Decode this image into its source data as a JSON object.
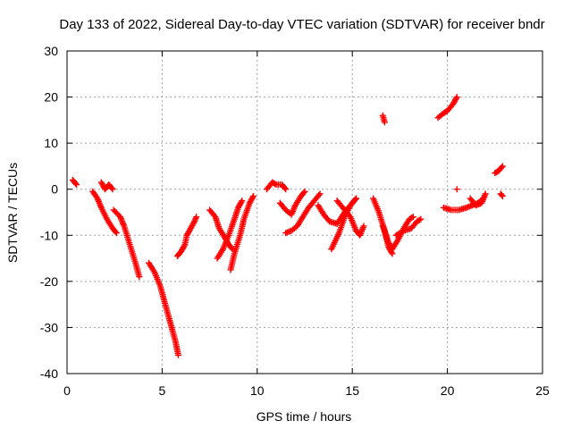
{
  "chart_data": {
    "type": "scatter",
    "title": "Day 133 of 2022, Sidereal Day-to-day VTEC variation (SDTVAR) for receiver bndr",
    "xlabel": "GPS time / hours",
    "ylabel": "SDTVAR / TECUs",
    "xlim": [
      0,
      25
    ],
    "ylim": [
      -40,
      30
    ],
    "x_ticks": [
      "0",
      "5",
      "10",
      "15",
      "20",
      "25"
    ],
    "y_ticks": [
      "30",
      "20",
      "10",
      "0",
      "-10",
      "-20",
      "-30",
      "-40"
    ],
    "grid": true,
    "marker": "plus",
    "color": "#ff0000",
    "tracks": [
      [
        [
          0.3,
          2
        ],
        [
          0.5,
          1
        ]
      ],
      [
        [
          1.8,
          1.5
        ],
        [
          2.0,
          0
        ],
        [
          2.2,
          1
        ],
        [
          2.4,
          0
        ]
      ],
      [
        [
          1.35,
          -0.5
        ],
        [
          1.6,
          -2
        ],
        [
          1.8,
          -4
        ],
        [
          2.1,
          -6.5
        ],
        [
          2.4,
          -8.5
        ],
        [
          2.6,
          -9.5
        ]
      ],
      [
        [
          2.45,
          -4.5
        ],
        [
          2.8,
          -6
        ],
        [
          3.0,
          -8
        ],
        [
          3.3,
          -12
        ],
        [
          3.6,
          -16
        ],
        [
          3.8,
          -19
        ]
      ],
      [
        [
          4.3,
          -16
        ],
        [
          4.6,
          -18
        ],
        [
          4.9,
          -21
        ],
        [
          5.1,
          -24
        ],
        [
          5.3,
          -27
        ],
        [
          5.5,
          -30
        ],
        [
          5.7,
          -33
        ],
        [
          5.85,
          -36
        ]
      ],
      [
        [
          5.8,
          -14.5
        ],
        [
          6.0,
          -13.5
        ],
        [
          6.2,
          -12
        ],
        [
          6.3,
          -10
        ],
        [
          6.5,
          -8.5
        ],
        [
          6.7,
          -7
        ],
        [
          6.8,
          -6
        ]
      ],
      [
        [
          7.5,
          -4.5
        ],
        [
          7.8,
          -6
        ],
        [
          8.0,
          -8.5
        ],
        [
          8.3,
          -10.5
        ],
        [
          8.5,
          -12
        ],
        [
          8.7,
          -13
        ]
      ],
      [
        [
          7.9,
          -15
        ],
        [
          8.2,
          -13
        ],
        [
          8.5,
          -10
        ],
        [
          8.8,
          -6.5
        ],
        [
          9.0,
          -4
        ],
        [
          9.2,
          -2.5
        ]
      ],
      [
        [
          8.6,
          -17.5
        ],
        [
          8.8,
          -14
        ],
        [
          9.1,
          -10
        ],
        [
          9.3,
          -6.5
        ],
        [
          9.6,
          -3
        ],
        [
          9.8,
          -1.5
        ]
      ],
      [
        [
          10.5,
          0
        ],
        [
          10.8,
          1.5
        ],
        [
          11.0,
          1
        ],
        [
          11.3,
          1
        ],
        [
          11.5,
          0
        ]
      ],
      [
        [
          11.2,
          -3
        ],
        [
          11.5,
          -4.5
        ],
        [
          11.8,
          -5.5
        ],
        [
          12.0,
          -3.5
        ],
        [
          12.3,
          -1.5
        ],
        [
          12.5,
          -0.5
        ]
      ],
      [
        [
          11.5,
          -9.5
        ],
        [
          11.8,
          -9
        ],
        [
          12.1,
          -8
        ],
        [
          12.4,
          -6
        ],
        [
          12.7,
          -4
        ],
        [
          13.0,
          -2.5
        ],
        [
          13.3,
          -1
        ]
      ],
      [
        [
          13.2,
          -3.5
        ],
        [
          13.5,
          -5.5
        ],
        [
          13.8,
          -7
        ],
        [
          14.2,
          -7.5
        ],
        [
          14.6,
          -5
        ],
        [
          15.0,
          -3
        ],
        [
          15.2,
          -2
        ]
      ],
      [
        [
          14.2,
          -2.5
        ],
        [
          14.6,
          -4.5
        ],
        [
          14.9,
          -6
        ],
        [
          15.2,
          -9
        ],
        [
          15.4,
          -10
        ],
        [
          15.6,
          -8
        ]
      ],
      [
        [
          13.9,
          -13
        ],
        [
          14.3,
          -9.5
        ],
        [
          14.6,
          -6
        ],
        [
          14.9,
          -3.5
        ],
        [
          15.2,
          -2
        ]
      ],
      [
        [
          16.6,
          16
        ],
        [
          16.7,
          14.5
        ]
      ],
      [
        [
          16.1,
          -2
        ],
        [
          16.4,
          -5
        ],
        [
          16.7,
          -9
        ],
        [
          16.9,
          -12.5
        ],
        [
          17.1,
          -14
        ]
      ],
      [
        [
          16.6,
          -8
        ],
        [
          16.9,
          -11.5
        ],
        [
          17.1,
          -13
        ],
        [
          17.4,
          -11
        ],
        [
          17.7,
          -8.5
        ],
        [
          18.0,
          -6.5
        ],
        [
          18.2,
          -6
        ]
      ],
      [
        [
          17.3,
          -10
        ],
        [
          17.7,
          -9
        ],
        [
          18.1,
          -8.5
        ],
        [
          18.4,
          -7
        ],
        [
          18.6,
          -6.5
        ]
      ],
      [
        [
          19.5,
          15.5
        ],
        [
          19.8,
          16.5
        ],
        [
          20.0,
          17
        ],
        [
          20.3,
          18.5
        ],
        [
          20.5,
          20
        ]
      ],
      [
        [
          20.5,
          0
        ]
      ],
      [
        [
          19.8,
          -4
        ],
        [
          20.2,
          -4.5
        ],
        [
          20.6,
          -4.5
        ],
        [
          21.0,
          -4
        ],
        [
          21.3,
          -3.5
        ],
        [
          21.6,
          -3
        ],
        [
          21.9,
          -2
        ]
      ],
      [
        [
          21.2,
          -2
        ],
        [
          21.5,
          -3.5
        ],
        [
          21.8,
          -3
        ],
        [
          22.0,
          -1
        ]
      ],
      [
        [
          22.5,
          3.5
        ],
        [
          22.7,
          4
        ],
        [
          22.9,
          5
        ]
      ],
      [
        [
          22.8,
          -1
        ],
        [
          22.9,
          -1.5
        ]
      ]
    ]
  }
}
